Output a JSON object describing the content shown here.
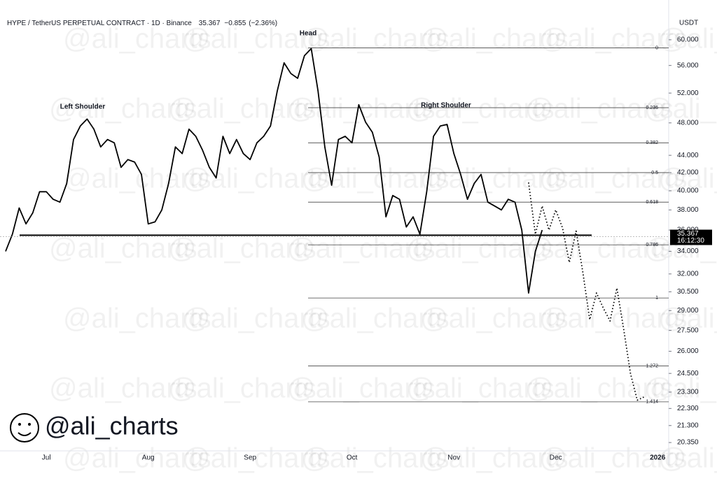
{
  "chart_data": {
    "type": "line",
    "title": "HYPE / TetherUS PERPETUAL CONTRACT · 1D · Binance",
    "price": 35.367,
    "change": {
      "value": -0.855,
      "label": "−0.855"
    },
    "change_pct": {
      "value": -2.36,
      "label": "(−2.36%)"
    },
    "countdown": "16:12:30",
    "y_unit": "USDT",
    "watermark": "@ali_charts",
    "log_scale": true,
    "ylim": [
      19.9,
      64.3
    ],
    "yticks": [
      {
        "value": 60,
        "label": "60.000"
      },
      {
        "value": 56,
        "label": "56.000"
      },
      {
        "value": 52,
        "label": "52.000"
      },
      {
        "value": 48,
        "label": "48.000"
      },
      {
        "value": 44,
        "label": "44.000"
      },
      {
        "value": 42,
        "label": "42.000"
      },
      {
        "value": 40,
        "label": "40.000"
      },
      {
        "value": 38,
        "label": "38.000"
      },
      {
        "value": 36,
        "label": "36.000"
      },
      {
        "value": 34,
        "label": "34.000"
      },
      {
        "value": 32,
        "label": "32.000"
      },
      {
        "value": 30.5,
        "label": "30.500"
      },
      {
        "value": 29,
        "label": "29.000"
      },
      {
        "value": 27.5,
        "label": "27.500"
      },
      {
        "value": 26,
        "label": "26.000"
      },
      {
        "value": 24.5,
        "label": "24.500"
      },
      {
        "value": 23.3,
        "label": "23.300"
      },
      {
        "value": 22.3,
        "label": "22.300"
      },
      {
        "value": 21.3,
        "label": "21.300"
      },
      {
        "value": 20.35,
        "label": "20.350"
      }
    ],
    "categories": [
      null,
      null,
      null,
      null,
      null,
      null,
      "Jul",
      null,
      null,
      null,
      null,
      null,
      null,
      null,
      null,
      null,
      null,
      null,
      null,
      null,
      null,
      "Aug",
      null,
      null,
      null,
      null,
      null,
      null,
      null,
      null,
      null,
      null,
      null,
      null,
      null,
      null,
      "Sep",
      null,
      null,
      null,
      null,
      null,
      null,
      null,
      null,
      null,
      null,
      null,
      null,
      null,
      null,
      "Oct",
      null,
      null,
      null,
      null,
      null,
      null,
      null,
      null,
      null,
      null,
      null,
      null,
      null,
      null,
      "Nov",
      null,
      null,
      null,
      null,
      null,
      null,
      null,
      null,
      null,
      null,
      null,
      null,
      null,
      null,
      "Dec",
      null,
      null,
      null,
      null,
      null,
      null,
      null,
      null,
      null,
      null,
      null,
      null,
      null,
      null,
      "2026",
      null
    ],
    "series": [
      {
        "color": "#000000",
        "style": "solid",
        "values": [
          34.0,
          35.6,
          38.2,
          36.6,
          37.7,
          39.9,
          39.9,
          39.1,
          38.8,
          40.8,
          45.9,
          47.6,
          48.5,
          47.2,
          45.0,
          45.9,
          45.5,
          42.6,
          43.5,
          43.2,
          41.8,
          36.6,
          36.8,
          38.0,
          40.8,
          45.0,
          44.2,
          47.2,
          46.3,
          44.6,
          42.6,
          41.4,
          46.3,
          44.2,
          45.9,
          44.2,
          43.5,
          45.5,
          46.3,
          47.6,
          52.3,
          56.4,
          54.8,
          54.1,
          57.5,
          58.6,
          52.3,
          45.0,
          40.6,
          45.9,
          46.3,
          45.5,
          50.4,
          48.1,
          46.8,
          43.8,
          37.3,
          39.5,
          39.1,
          36.3,
          37.3,
          35.6,
          39.9,
          46.3,
          47.6,
          47.8,
          44.2,
          41.8,
          39.1,
          40.8,
          41.8,
          38.8,
          38.4,
          38.0,
          39.1,
          38.8,
          36.0,
          30.4,
          34.0,
          36.0,
          null,
          null,
          null,
          null,
          null,
          null,
          null,
          null,
          null,
          null,
          null,
          null,
          null,
          null,
          null,
          null,
          null,
          null
        ]
      },
      {
        "color": "#000000",
        "style": "dotted",
        "values": [
          null,
          null,
          null,
          null,
          null,
          null,
          null,
          null,
          null,
          null,
          null,
          null,
          null,
          null,
          null,
          null,
          null,
          null,
          null,
          null,
          null,
          null,
          null,
          null,
          null,
          null,
          null,
          null,
          null,
          null,
          null,
          null,
          null,
          null,
          null,
          null,
          null,
          null,
          null,
          null,
          null,
          null,
          null,
          null,
          null,
          null,
          null,
          null,
          null,
          null,
          null,
          null,
          null,
          null,
          null,
          null,
          null,
          null,
          null,
          null,
          null,
          null,
          null,
          null,
          null,
          null,
          null,
          null,
          null,
          null,
          null,
          null,
          null,
          null,
          null,
          null,
          null,
          40.9,
          35.6,
          38.4,
          36.0,
          38.0,
          36.2,
          33.0,
          35.9,
          32.1,
          28.3,
          30.4,
          29.2,
          28.2,
          30.8,
          27.6,
          24.5,
          22.8,
          23.0,
          null,
          null,
          null
        ]
      }
    ],
    "neckline": 35.5,
    "fib_levels": {
      "ratios": [
        0,
        0.236,
        0.382,
        0.5,
        0.618,
        0.786,
        1,
        1.272,
        1.414
      ],
      "values": [
        58.7,
        50.0,
        45.5,
        42.0,
        38.8,
        34.6,
        30.0,
        25.0,
        22.7
      ]
    },
    "annotations": [
      "Left Shoulder",
      "Head",
      "Right Shoulder"
    ]
  }
}
